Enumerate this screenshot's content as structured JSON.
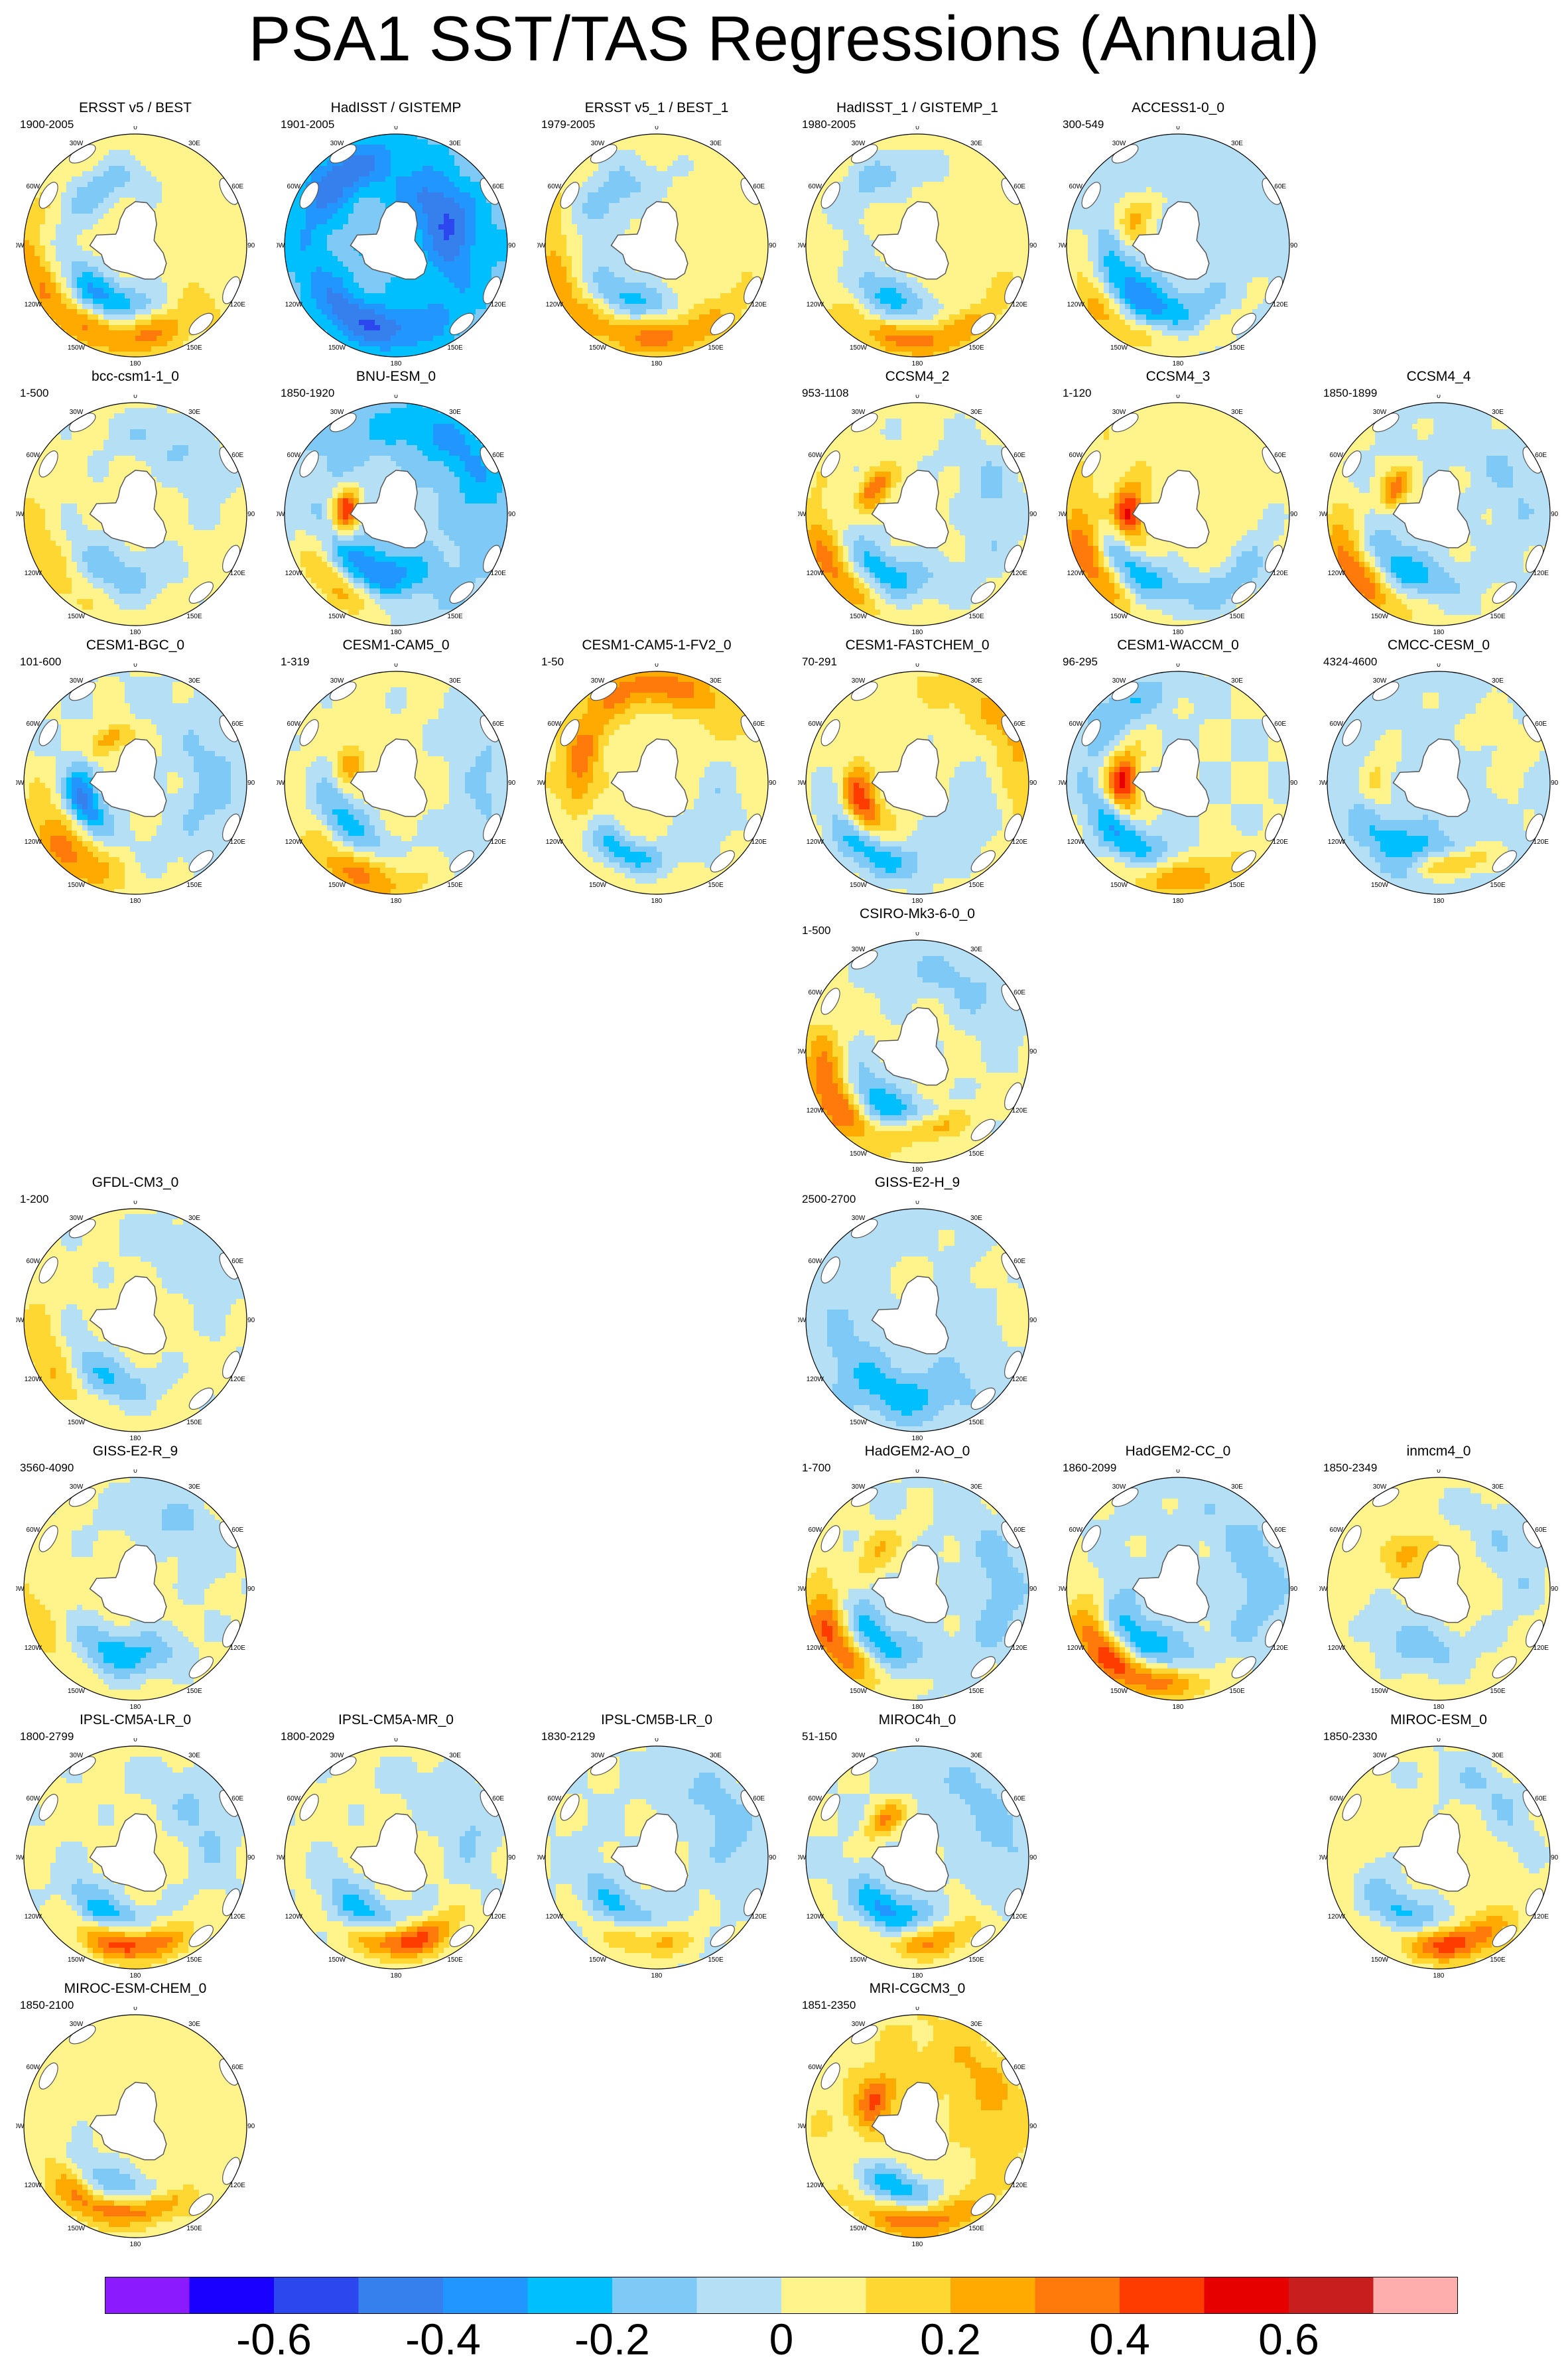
{
  "title": "PSA1 SST/TAS Regressions (Annual)",
  "map_labels": {
    "lon_top": "0",
    "lon_30e": "30E",
    "lon_60e": "60E",
    "lon_90e": "90E",
    "lon_120e": "120E",
    "lon_150e": "150E",
    "lon_180": "180",
    "lon_150w": "150W",
    "lon_120w": "120W",
    "lon_90w": "90W",
    "lon_60w": "60W",
    "lon_30w": "30W"
  },
  "colors": {
    "levels": [
      "#8b1aff",
      "#1a00ff",
      "#2d47ef",
      "#3580ec",
      "#2196ff",
      "#00bfff",
      "#7ec9f5",
      "#b4dff5",
      "#fff38c",
      "#ffd732",
      "#ffaa00",
      "#ff7a0a",
      "#ff3c00",
      "#e60000",
      "#c81e1e",
      "#ffaeae"
    ],
    "land": "#ffffff",
    "coast": "#555555"
  },
  "chart_data": {
    "type": "heatmap",
    "title": "PSA1 SST/TAS Regressions (Annual)",
    "colorbar_ticks": [
      "-0.6",
      "-0.4",
      "-0.2",
      "0",
      "0.2",
      "0.4",
      "0.6"
    ],
    "colorbar_levels": [
      -0.7,
      -0.6,
      -0.5,
      -0.4,
      -0.3,
      -0.2,
      -0.1,
      0,
      0.1,
      0.2,
      0.3,
      0.4,
      0.5,
      0.6,
      0.7
    ],
    "panels": [
      {
        "name": "ERSST v5 / BEST",
        "years": "1900-2005",
        "row": 0,
        "col": 0,
        "bg": 0.05,
        "blobs": [
          [
            -0.4,
            0.55,
            210,
            0.25,
            0.2
          ],
          [
            0.3,
            0.8,
            185,
            0.28,
            0.18
          ],
          [
            -0.2,
            0.6,
            330,
            0.25,
            0.2
          ],
          [
            0.2,
            0.95,
            250,
            0.2,
            0.15
          ]
        ]
      },
      {
        "name": "HadISST / GISTEMP",
        "years": "1901-2005",
        "row": 0,
        "col": 1,
        "bg": -0.18,
        "blobs": [
          [
            -0.35,
            0.5,
            60,
            0.35,
            0.25
          ],
          [
            -0.3,
            0.75,
            200,
            0.3,
            0.2
          ],
          [
            0.05,
            0.35,
            0,
            0.3,
            0.3
          ],
          [
            -0.3,
            0.8,
            320,
            0.2,
            0.2
          ]
        ]
      },
      {
        "name": "ERSST v5_1 / BEST_1",
        "years": "1979-2005",
        "row": 0,
        "col": 2,
        "bg": 0.05,
        "blobs": [
          [
            -0.3,
            0.55,
            210,
            0.25,
            0.2
          ],
          [
            0.3,
            0.82,
            180,
            0.28,
            0.18
          ],
          [
            -0.2,
            0.6,
            320,
            0.25,
            0.25
          ],
          [
            0.2,
            0.95,
            255,
            0.2,
            0.15
          ]
        ]
      },
      {
        "name": "HadISST_1 / GISTEMP_1",
        "years": "1980-2005",
        "row": 0,
        "col": 3,
        "bg": 0.06,
        "blobs": [
          [
            -0.3,
            0.55,
            210,
            0.25,
            0.2
          ],
          [
            0.3,
            0.85,
            180,
            0.25,
            0.15
          ],
          [
            -0.2,
            0.7,
            330,
            0.25,
            0.2
          ]
        ]
      },
      {
        "name": "ACCESS1-0_0",
        "years": "300-549",
        "row": 0,
        "col": 4,
        "bg": -0.05,
        "blobs": [
          [
            0.3,
            0.45,
            300,
            0.2,
            0.15
          ],
          [
            -0.35,
            0.6,
            220,
            0.3,
            0.2
          ],
          [
            0.3,
            0.9,
            230,
            0.2,
            0.2
          ],
          [
            0.1,
            0.85,
            160,
            0.25,
            0.15
          ]
        ]
      },
      {
        "name": "bcc-csm1-1_0",
        "years": "1-500",
        "row": 1,
        "col": 0,
        "bg": 0.04,
        "blobs": [
          [
            -0.2,
            0.55,
            200,
            0.3,
            0.25
          ],
          [
            -0.15,
            0.7,
            30,
            0.3,
            0.25
          ],
          [
            0.15,
            0.9,
            240,
            0.2,
            0.2
          ]
        ]
      },
      {
        "name": "BNU-ESM_0",
        "years": "1850-1920",
        "row": 1,
        "col": 1,
        "bg": -0.08,
        "blobs": [
          [
            0.55,
            0.45,
            275,
            0.15,
            0.12
          ],
          [
            -0.35,
            0.55,
            200,
            0.25,
            0.2
          ],
          [
            0.3,
            0.85,
            220,
            0.2,
            0.2
          ],
          [
            -0.25,
            0.8,
            40,
            0.35,
            0.25
          ]
        ]
      },
      {
        "name": "CCSM4_2",
        "years": "953-1108",
        "row": 1,
        "col": 3,
        "bg": 0.03,
        "blobs": [
          [
            0.35,
            0.45,
            300,
            0.15,
            0.12
          ],
          [
            -0.3,
            0.6,
            210,
            0.25,
            0.2
          ],
          [
            0.3,
            0.9,
            240,
            0.2,
            0.2
          ],
          [
            -0.15,
            0.7,
            80,
            0.3,
            0.25
          ]
        ]
      },
      {
        "name": "CCSM4_3",
        "years": "1-120",
        "row": 1,
        "col": 4,
        "bg": 0.06,
        "blobs": [
          [
            0.5,
            0.45,
            270,
            0.18,
            0.14
          ],
          [
            -0.35,
            0.65,
            220,
            0.25,
            0.2
          ],
          [
            0.35,
            0.88,
            245,
            0.2,
            0.2
          ],
          [
            -0.2,
            0.8,
            140,
            0.25,
            0.2
          ]
        ]
      },
      {
        "name": "CCSM4_4",
        "years": "1850-1899",
        "row": 1,
        "col": 5,
        "bg": 0.0,
        "blobs": [
          [
            0.35,
            0.45,
            300,
            0.15,
            0.12
          ],
          [
            -0.3,
            0.6,
            215,
            0.25,
            0.2
          ],
          [
            0.4,
            0.9,
            235,
            0.2,
            0.2
          ],
          [
            -0.1,
            0.7,
            60,
            0.35,
            0.25
          ]
        ]
      },
      {
        "name": "CESM1-BGC_0",
        "years": "101-600",
        "row": 2,
        "col": 0,
        "bg": 0.0,
        "blobs": [
          [
            -0.45,
            0.5,
            250,
            0.2,
            0.15
          ],
          [
            0.35,
            0.88,
            225,
            0.2,
            0.22
          ],
          [
            0.3,
            0.45,
            330,
            0.15,
            0.12
          ],
          [
            -0.15,
            0.7,
            90,
            0.3,
            0.25
          ]
        ]
      },
      {
        "name": "CESM1-CAM5_0",
        "years": "1-319",
        "row": 2,
        "col": 1,
        "bg": 0.03,
        "blobs": [
          [
            0.25,
            0.45,
            290,
            0.15,
            0.12
          ],
          [
            -0.3,
            0.6,
            230,
            0.25,
            0.2
          ],
          [
            0.3,
            0.88,
            205,
            0.2,
            0.22
          ],
          [
            -0.15,
            0.8,
            90,
            0.3,
            0.25
          ]
        ]
      },
      {
        "name": "CESM1-CAM5-1-FV2_0",
        "years": "1-50",
        "row": 2,
        "col": 2,
        "bg": 0.05,
        "blobs": [
          [
            0.3,
            0.7,
            280,
            0.2,
            0.15
          ],
          [
            -0.3,
            0.7,
            210,
            0.2,
            0.15
          ],
          [
            0.3,
            0.88,
            0,
            0.3,
            0.2
          ],
          [
            -0.15,
            0.6,
            120,
            0.3,
            0.2
          ]
        ]
      },
      {
        "name": "CESM1-FASTCHEM_0",
        "years": "70-291",
        "row": 2,
        "col": 3,
        "bg": 0.04,
        "blobs": [
          [
            0.5,
            0.55,
            250,
            0.18,
            0.15
          ],
          [
            -0.3,
            0.75,
            220,
            0.25,
            0.2
          ],
          [
            0.2,
            0.9,
            60,
            0.3,
            0.2
          ],
          [
            -0.15,
            0.6,
            120,
            0.3,
            0.25
          ]
        ]
      },
      {
        "name": "CESM1-WACCM_0",
        "years": "96-295",
        "row": 2,
        "col": 4,
        "bg": 0.0,
        "blobs": [
          [
            0.55,
            0.5,
            270,
            0.18,
            0.15
          ],
          [
            -0.35,
            0.7,
            220,
            0.25,
            0.2
          ],
          [
            0.35,
            0.85,
            180,
            0.2,
            0.2
          ],
          [
            -0.2,
            0.85,
            320,
            0.2,
            0.2
          ]
        ]
      },
      {
        "name": "CMCC-CESM_0",
        "years": "4324-4600",
        "row": 2,
        "col": 5,
        "bg": -0.05,
        "blobs": [
          [
            0.2,
            0.55,
            270,
            0.2,
            0.15
          ],
          [
            -0.25,
            0.65,
            210,
            0.25,
            0.2
          ],
          [
            0.35,
            0.75,
            170,
            0.15,
            0.12
          ],
          [
            0.1,
            0.7,
            60,
            0.3,
            0.25
          ]
        ]
      },
      {
        "name": "CSIRO-Mk3-6-0_0",
        "years": "1-500",
        "row": 3,
        "col": 3,
        "bg": 0.02,
        "blobs": [
          [
            0.45,
            0.85,
            240,
            0.22,
            0.2
          ],
          [
            -0.35,
            0.6,
            215,
            0.25,
            0.2
          ],
          [
            0.3,
            0.7,
            170,
            0.15,
            0.12
          ],
          [
            -0.15,
            0.75,
            30,
            0.3,
            0.25
          ]
        ]
      },
      {
        "name": "GFDL-CM3_0",
        "years": "1-200",
        "row": 4,
        "col": 0,
        "bg": 0.03,
        "blobs": [
          [
            -0.25,
            0.6,
            210,
            0.25,
            0.2
          ],
          [
            0.2,
            0.85,
            240,
            0.2,
            0.2
          ],
          [
            -0.1,
            0.75,
            40,
            0.3,
            0.25
          ]
        ]
      },
      {
        "name": "GISS-E2-H_9",
        "years": "2500-2700",
        "row": 4,
        "col": 3,
        "bg": -0.06,
        "blobs": [
          [
            0.1,
            0.35,
            0,
            0.35,
            0.3
          ],
          [
            -0.2,
            0.7,
            200,
            0.3,
            0.2
          ],
          [
            0.1,
            0.9,
            80,
            0.3,
            0.2
          ]
        ]
      },
      {
        "name": "GISS-E2-R_9",
        "years": "3560-4090",
        "row": 5,
        "col": 0,
        "bg": 0.03,
        "blobs": [
          [
            -0.3,
            0.6,
            190,
            0.25,
            0.2
          ],
          [
            -0.15,
            0.7,
            30,
            0.3,
            0.25
          ],
          [
            0.1,
            0.9,
            250,
            0.2,
            0.2
          ]
        ]
      },
      {
        "name": "HadGEM2-AO_0",
        "years": "1-700",
        "row": 5,
        "col": 3,
        "bg": 0.0,
        "blobs": [
          [
            0.45,
            0.85,
            240,
            0.2,
            0.22
          ],
          [
            -0.35,
            0.6,
            225,
            0.25,
            0.2
          ],
          [
            0.2,
            0.5,
            310,
            0.2,
            0.15
          ],
          [
            -0.15,
            0.75,
            90,
            0.3,
            0.25
          ]
        ]
      },
      {
        "name": "HadGEM2-CC_0",
        "years": "1860-2099",
        "row": 5,
        "col": 4,
        "bg": -0.02,
        "blobs": [
          [
            0.45,
            0.85,
            230,
            0.2,
            0.22
          ],
          [
            -0.35,
            0.6,
            220,
            0.25,
            0.2
          ],
          [
            0.25,
            0.85,
            185,
            0.2,
            0.15
          ],
          [
            -0.15,
            0.75,
            80,
            0.3,
            0.25
          ]
        ]
      },
      {
        "name": "inmcm4_0",
        "years": "1850-2349",
        "row": 5,
        "col": 5,
        "bg": 0.05,
        "blobs": [
          [
            -0.2,
            0.55,
            200,
            0.3,
            0.25
          ],
          [
            0.2,
            0.4,
            320,
            0.2,
            0.15
          ],
          [
            -0.15,
            0.75,
            60,
            0.3,
            0.25
          ]
        ]
      },
      {
        "name": "IPSL-CM5A-LR_0",
        "years": "1800-2799",
        "row": 6,
        "col": 0,
        "bg": 0.03,
        "blobs": [
          [
            0.5,
            0.78,
            185,
            0.2,
            0.15
          ],
          [
            -0.3,
            0.6,
            210,
            0.25,
            0.2
          ],
          [
            -0.15,
            0.7,
            60,
            0.3,
            0.25
          ]
        ]
      },
      {
        "name": "IPSL-CM5A-MR_0",
        "years": "1800-2029",
        "row": 6,
        "col": 1,
        "bg": 0.03,
        "blobs": [
          [
            0.5,
            0.75,
            175,
            0.2,
            0.15
          ],
          [
            -0.3,
            0.6,
            210,
            0.25,
            0.2
          ],
          [
            -0.15,
            0.7,
            60,
            0.3,
            0.25
          ]
        ]
      },
      {
        "name": "IPSL-CM5B-LR_0",
        "years": "1830-2129",
        "row": 6,
        "col": 2,
        "bg": 0.0,
        "blobs": [
          [
            0.3,
            0.75,
            190,
            0.2,
            0.15
          ],
          [
            -0.25,
            0.6,
            215,
            0.25,
            0.2
          ],
          [
            -0.15,
            0.7,
            60,
            0.3,
            0.25
          ]
        ]
      },
      {
        "name": "MIROC4h_0",
        "years": "51-150",
        "row": 6,
        "col": 3,
        "bg": 0.0,
        "blobs": [
          [
            0.3,
            0.78,
            170,
            0.2,
            0.15
          ],
          [
            -0.35,
            0.55,
            210,
            0.22,
            0.18
          ],
          [
            0.3,
            0.45,
            320,
            0.15,
            0.12
          ],
          [
            -0.15,
            0.75,
            60,
            0.3,
            0.25
          ]
        ]
      },
      {
        "name": "MIROC-ESM_0",
        "years": "1850-2330",
        "row": 6,
        "col": 5,
        "bg": 0.05,
        "blobs": [
          [
            0.45,
            0.78,
            170,
            0.2,
            0.15
          ],
          [
            -0.3,
            0.6,
            215,
            0.25,
            0.2
          ],
          [
            -0.15,
            0.75,
            40,
            0.3,
            0.25
          ]
        ]
      },
      {
        "name": "MIROC-ESM-CHEM_0",
        "years": "1850-2100",
        "row": 7,
        "col": 0,
        "bg": 0.05,
        "blobs": [
          [
            0.35,
            0.8,
            215,
            0.18,
            0.15
          ],
          [
            -0.25,
            0.6,
            205,
            0.25,
            0.2
          ],
          [
            0.3,
            0.75,
            170,
            0.15,
            0.12
          ]
        ]
      },
      {
        "name": "MRI-CGCM3_0",
        "years": "1851-2350",
        "row": 7,
        "col": 3,
        "bg": 0.08,
        "blobs": [
          [
            0.35,
            0.45,
            300,
            0.2,
            0.15
          ],
          [
            -0.35,
            0.6,
            200,
            0.22,
            0.18
          ],
          [
            0.3,
            0.85,
            180,
            0.2,
            0.15
          ],
          [
            0.15,
            0.7,
            60,
            0.3,
            0.25
          ]
        ]
      }
    ]
  }
}
